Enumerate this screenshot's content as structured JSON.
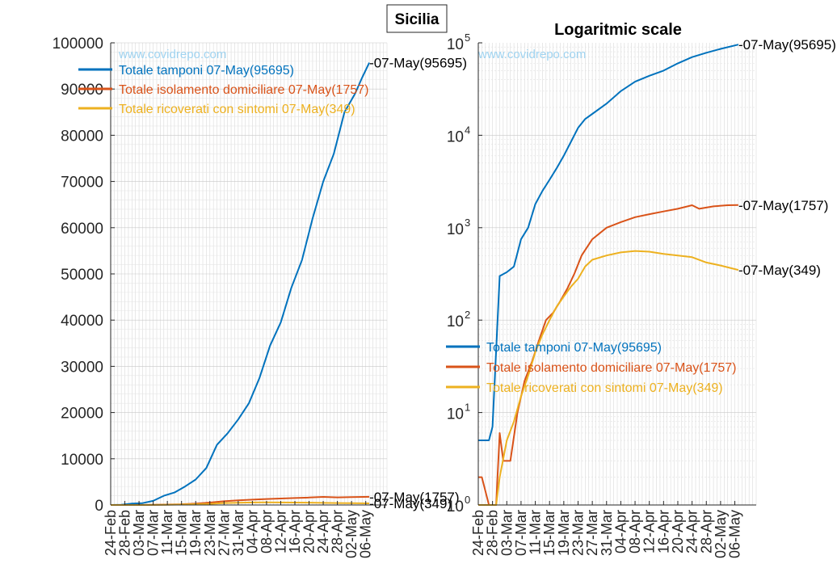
{
  "figure_title": "Sicilia",
  "watermark": "www.covidrepo.com",
  "colors": {
    "tamponi": "#0072BD",
    "isolamento": "#D95319",
    "ricoverati": "#EDB120",
    "grid": "#d9d9d9",
    "axis": "#262626",
    "watermark": "#9fd3f0"
  },
  "chart_data": [
    {
      "type": "line",
      "title": "",
      "xlabel": "",
      "ylabel": "",
      "yscale": "linear",
      "ylim": [
        0,
        100000
      ],
      "yticks": [
        0,
        10000,
        20000,
        30000,
        40000,
        50000,
        60000,
        70000,
        80000,
        90000,
        100000
      ],
      "ytick_labels": [
        "0",
        "10000",
        "20000",
        "30000",
        "40000",
        "50000",
        "60000",
        "70000",
        "80000",
        "90000",
        "100000"
      ],
      "xlim": [
        "24-Feb",
        "12-May"
      ],
      "xtick_labels": [
        "24-Feb",
        "28-Feb",
        "03-Mar",
        "07-Mar",
        "11-Mar",
        "15-Mar",
        "19-Mar",
        "23-Mar",
        "27-Mar",
        "31-Mar",
        "04-Apr",
        "08-Apr",
        "12-Apr",
        "16-Apr",
        "20-Apr",
        "24-Apr",
        "28-Apr",
        "02-May",
        "06-May"
      ],
      "grid": true,
      "legend_position": "top-left",
      "series": [
        {
          "key": "tamponi",
          "name": "Totale tamponi 07-May(95695)",
          "end_label": "-07-May(95695)",
          "x": [
            "24-Feb",
            "27-Feb",
            "01-Mar",
            "04-Mar",
            "07-Mar",
            "10-Mar",
            "13-Mar",
            "16-Mar",
            "19-Mar",
            "22-Mar",
            "25-Mar",
            "28-Mar",
            "31-Mar",
            "03-Apr",
            "06-Apr",
            "09-Apr",
            "12-Apr",
            "15-Apr",
            "18-Apr",
            "21-Apr",
            "24-Apr",
            "27-Apr",
            "30-Apr",
            "03-May",
            "05-May",
            "07-May"
          ],
          "y": [
            5,
            30,
            300,
            400,
            900,
            2000,
            2700,
            4000,
            5500,
            8000,
            13000,
            15500,
            18500,
            22000,
            27500,
            34500,
            39500,
            47000,
            53000,
            62000,
            70000,
            76000,
            85000,
            89000,
            92500,
            95695
          ]
        },
        {
          "key": "isolamento",
          "name": "Totale isolamento domiciliare 07-May(1757)",
          "end_label": "-07-May(1757)",
          "x": [
            "24-Feb",
            "28-Feb",
            "03-Mar",
            "07-Mar",
            "11-Mar",
            "15-Mar",
            "19-Mar",
            "23-Mar",
            "27-Mar",
            "31-Mar",
            "04-Apr",
            "08-Apr",
            "12-Apr",
            "16-Apr",
            "20-Apr",
            "24-Apr",
            "28-Apr",
            "02-May",
            "07-May"
          ],
          "y": [
            2,
            1,
            5,
            40,
            90,
            160,
            300,
            520,
            800,
            1000,
            1150,
            1300,
            1400,
            1500,
            1600,
            1750,
            1650,
            1700,
            1757
          ]
        },
        {
          "key": "ricoverati",
          "name": "Totale ricoverati con sintomi 07-May(349)",
          "end_label": "-07-May(349)",
          "x": [
            "24-Feb",
            "28-Feb",
            "03-Mar",
            "07-Mar",
            "11-Mar",
            "15-Mar",
            "19-Mar",
            "23-Mar",
            "27-Mar",
            "31-Mar",
            "04-Apr",
            "08-Apr",
            "12-Apr",
            "16-Apr",
            "20-Apr",
            "24-Apr",
            "28-Apr",
            "02-May",
            "07-May"
          ],
          "y": [
            1,
            1,
            5,
            20,
            50,
            100,
            170,
            250,
            420,
            490,
            540,
            560,
            540,
            520,
            500,
            460,
            420,
            390,
            349
          ]
        }
      ]
    },
    {
      "type": "line",
      "title": "Logaritmic scale",
      "xlabel": "",
      "ylabel": "",
      "yscale": "log",
      "ylim": [
        1,
        100000
      ],
      "yticks": [
        1,
        10,
        100,
        1000,
        10000,
        100000
      ],
      "ytick_exponents": [
        "0",
        "1",
        "2",
        "3",
        "4",
        "5"
      ],
      "ytick_base": "10",
      "xlim": [
        "24-Feb",
        "12-May"
      ],
      "xtick_labels": [
        "24-Feb",
        "28-Feb",
        "03-Mar",
        "07-Mar",
        "11-Mar",
        "15-Mar",
        "19-Mar",
        "23-Mar",
        "27-Mar",
        "31-Mar",
        "04-Apr",
        "08-Apr",
        "12-Apr",
        "16-Apr",
        "20-Apr",
        "24-Apr",
        "28-Apr",
        "02-May",
        "06-May"
      ],
      "grid": true,
      "legend_position": "lower-left",
      "series": [
        {
          "key": "tamponi",
          "name": "Totale tamponi 07-May(95695)",
          "end_label": "-07-May(95695)",
          "x": [
            "24-Feb",
            "27-Feb",
            "28-Feb",
            "01-Mar",
            "03-Mar",
            "05-Mar",
            "07-Mar",
            "09-Mar",
            "11-Mar",
            "13-Mar",
            "15-Mar",
            "17-Mar",
            "19-Mar",
            "21-Mar",
            "23-Mar",
            "25-Mar",
            "27-Mar",
            "31-Mar",
            "04-Apr",
            "08-Apr",
            "12-Apr",
            "16-Apr",
            "20-Apr",
            "24-Apr",
            "28-Apr",
            "02-May",
            "07-May"
          ],
          "y": [
            5,
            5,
            7,
            300,
            330,
            380,
            750,
            1000,
            1800,
            2500,
            3300,
            4400,
            6000,
            8500,
            12000,
            15000,
            17000,
            22000,
            30000,
            38000,
            44000,
            50000,
            60000,
            70000,
            78000,
            86000,
            95695
          ]
        },
        {
          "key": "isolamento",
          "name": "Totale isolamento domiciliare 07-May(1757)",
          "end_label": "-07-May(1757)",
          "x": [
            "24-Feb",
            "25-Feb",
            "27-Feb",
            "29-Feb",
            "01-Mar",
            "02-Mar",
            "04-Mar",
            "06-Mar",
            "08-Mar",
            "10-Mar",
            "12-Mar",
            "14-Mar",
            "16-Mar",
            "18-Mar",
            "20-Mar",
            "22-Mar",
            "24-Mar",
            "27-Mar",
            "31-Mar",
            "04-Apr",
            "08-Apr",
            "12-Apr",
            "16-Apr",
            "20-Apr",
            "24-Apr",
            "26-Apr",
            "30-Apr",
            "04-May",
            "07-May"
          ],
          "y": [
            2,
            2,
            1,
            1,
            6,
            3,
            3,
            10,
            22,
            35,
            60,
            100,
            120,
            160,
            220,
            320,
            500,
            750,
            1000,
            1150,
            1300,
            1400,
            1500,
            1600,
            1750,
            1600,
            1700,
            1750,
            1757
          ]
        },
        {
          "key": "ricoverati",
          "name": "Totale ricoverati con sintomi 07-May(349)",
          "end_label": "-07-May(349)",
          "x": [
            "24-Feb",
            "28-Feb",
            "29-Feb",
            "01-Mar",
            "03-Mar",
            "05-Mar",
            "07-Mar",
            "09-Mar",
            "11-Mar",
            "13-Mar",
            "15-Mar",
            "17-Mar",
            "19-Mar",
            "21-Mar",
            "23-Mar",
            "25-Mar",
            "27-Mar",
            "31-Mar",
            "04-Apr",
            "08-Apr",
            "12-Apr",
            "16-Apr",
            "20-Apr",
            "24-Apr",
            "28-Apr",
            "02-May",
            "07-May"
          ],
          "y": [
            1,
            1,
            1,
            2,
            5,
            8,
            15,
            25,
            45,
            70,
            100,
            140,
            180,
            230,
            280,
            380,
            450,
            500,
            540,
            560,
            550,
            520,
            500,
            480,
            420,
            390,
            349
          ]
        }
      ]
    }
  ]
}
